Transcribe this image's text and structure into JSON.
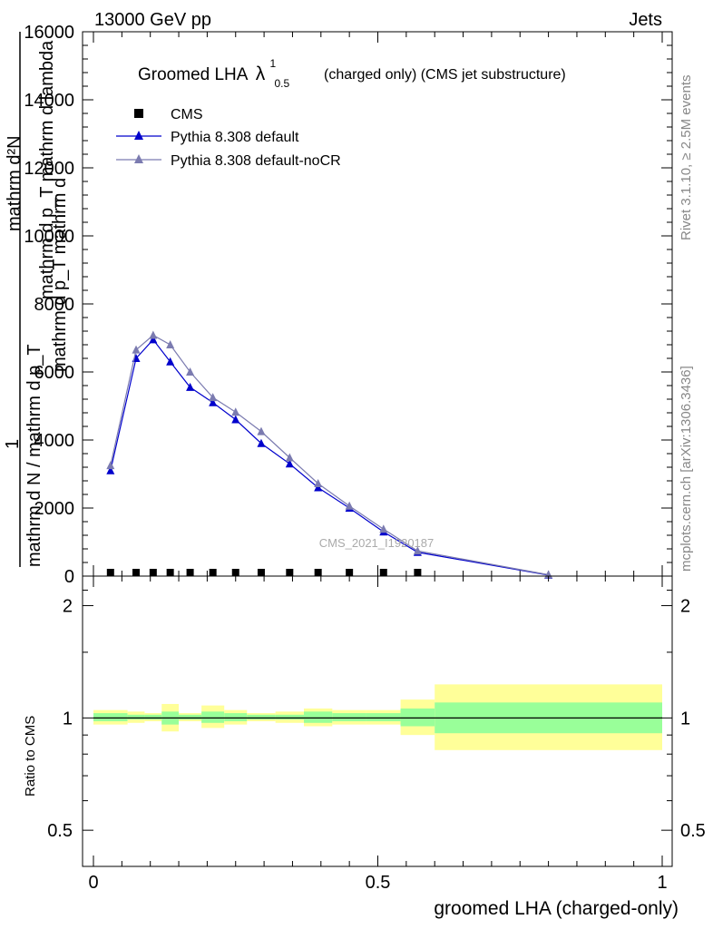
{
  "header": {
    "left": "13000 GeV pp",
    "right": "Jets"
  },
  "side_labels": {
    "rivet": "Rivet 3.1.10, ≥ 2.5M events",
    "mcplots": "mcplots.cern.ch [arXiv:1306.3436]"
  },
  "watermark": "CMS_2021_I1920187",
  "chart_data": [
    {
      "type": "line",
      "title": "Groomed LHA",
      "title_symbol": "λ",
      "title_sup": "1",
      "title_sub": "0.5",
      "subtitle": "(charged only) (CMS jet substructure)",
      "ylabel_lines": [
        "mathrm d²N",
        "mathrm d p_T mathrm d lambda",
        "1",
        "mathrm d N / mathrm d p_T",
        "mathrm d p_T mathrm d"
      ],
      "ylim": [
        0,
        16000
      ],
      "yticks": [
        0,
        2000,
        4000,
        6000,
        8000,
        10000,
        12000,
        14000,
        16000
      ],
      "ytick_labels": [
        "0",
        "2000",
        "4000",
        "6000",
        "8000",
        "10000",
        "12000",
        "14000",
        "16000"
      ],
      "xlim": [
        0,
        1
      ],
      "legend_position": "top-left",
      "series": [
        {
          "name": "CMS",
          "color": "#000000",
          "marker": "square",
          "x": [
            0.03,
            0.075,
            0.105,
            0.135,
            0.17,
            0.21,
            0.25,
            0.295,
            0.345,
            0.395,
            0.45,
            0.51,
            0.57
          ],
          "values": [
            0,
            0,
            0,
            0,
            0,
            0,
            0,
            0,
            0,
            0,
            0,
            0,
            0
          ]
        },
        {
          "name": "Pythia 8.308 default",
          "color": "#0000cc",
          "marker": "triangle",
          "x": [
            0.03,
            0.075,
            0.105,
            0.135,
            0.17,
            0.21,
            0.25,
            0.295,
            0.345,
            0.395,
            0.45,
            0.51,
            0.57,
            0.8
          ],
          "values": [
            3100,
            6400,
            6950,
            6300,
            5550,
            5100,
            4600,
            3900,
            3300,
            2600,
            2000,
            1300,
            700,
            30
          ]
        },
        {
          "name": "Pythia 8.308 default-noCR",
          "color": "#7b7bb0",
          "marker": "triangle",
          "x": [
            0.03,
            0.075,
            0.105,
            0.135,
            0.17,
            0.21,
            0.25,
            0.295,
            0.345,
            0.395,
            0.45,
            0.51,
            0.57,
            0.8
          ],
          "values": [
            3250,
            6650,
            7080,
            6800,
            6000,
            5250,
            4820,
            4250,
            3480,
            2720,
            2060,
            1380,
            740,
            40
          ]
        }
      ]
    },
    {
      "type": "area",
      "ylabel": "Ratio to CMS",
      "xlabel": "groomed LHA (charged-only)",
      "ylim": [
        0.4,
        2.4
      ],
      "log_y": true,
      "yticks": [
        0.5,
        1,
        2
      ],
      "ytick_labels": [
        "0.5",
        "1",
        "2"
      ],
      "xlim": [
        0,
        1
      ],
      "xticks": [
        0,
        0.5,
        1
      ],
      "xtick_labels": [
        "0",
        "0.5",
        "1"
      ],
      "reference": 1,
      "band_colors": {
        "outer": "#ffff99",
        "inner": "#99ff99",
        "line": "#000000"
      },
      "bins": [
        {
          "lo": 0.0,
          "hi": 0.06,
          "inner": [
            0.98,
            1.03
          ],
          "outer": [
            0.96,
            1.05
          ]
        },
        {
          "lo": 0.06,
          "hi": 0.09,
          "inner": [
            0.99,
            1.02
          ],
          "outer": [
            0.97,
            1.04
          ]
        },
        {
          "lo": 0.09,
          "hi": 0.12,
          "inner": [
            0.99,
            1.02
          ],
          "outer": [
            0.98,
            1.03
          ]
        },
        {
          "lo": 0.12,
          "hi": 0.15,
          "inner": [
            0.96,
            1.04
          ],
          "outer": [
            0.92,
            1.09
          ]
        },
        {
          "lo": 0.15,
          "hi": 0.19,
          "inner": [
            0.99,
            1.02
          ],
          "outer": [
            0.98,
            1.03
          ]
        },
        {
          "lo": 0.19,
          "hi": 0.23,
          "inner": [
            0.97,
            1.04
          ],
          "outer": [
            0.94,
            1.08
          ]
        },
        {
          "lo": 0.23,
          "hi": 0.27,
          "inner": [
            0.98,
            1.03
          ],
          "outer": [
            0.96,
            1.05
          ]
        },
        {
          "lo": 0.27,
          "hi": 0.32,
          "inner": [
            0.99,
            1.02
          ],
          "outer": [
            0.98,
            1.03
          ]
        },
        {
          "lo": 0.32,
          "hi": 0.37,
          "inner": [
            0.99,
            1.02
          ],
          "outer": [
            0.97,
            1.04
          ]
        },
        {
          "lo": 0.37,
          "hi": 0.42,
          "inner": [
            0.97,
            1.04
          ],
          "outer": [
            0.95,
            1.06
          ]
        },
        {
          "lo": 0.42,
          "hi": 0.48,
          "inner": [
            0.98,
            1.03
          ],
          "outer": [
            0.96,
            1.05
          ]
        },
        {
          "lo": 0.48,
          "hi": 0.54,
          "inner": [
            0.98,
            1.03
          ],
          "outer": [
            0.96,
            1.05
          ]
        },
        {
          "lo": 0.54,
          "hi": 0.6,
          "inner": [
            0.95,
            1.06
          ],
          "outer": [
            0.9,
            1.12
          ]
        },
        {
          "lo": 0.6,
          "hi": 1.0,
          "inner": [
            0.91,
            1.1
          ],
          "outer": [
            0.82,
            1.23
          ]
        }
      ]
    }
  ]
}
